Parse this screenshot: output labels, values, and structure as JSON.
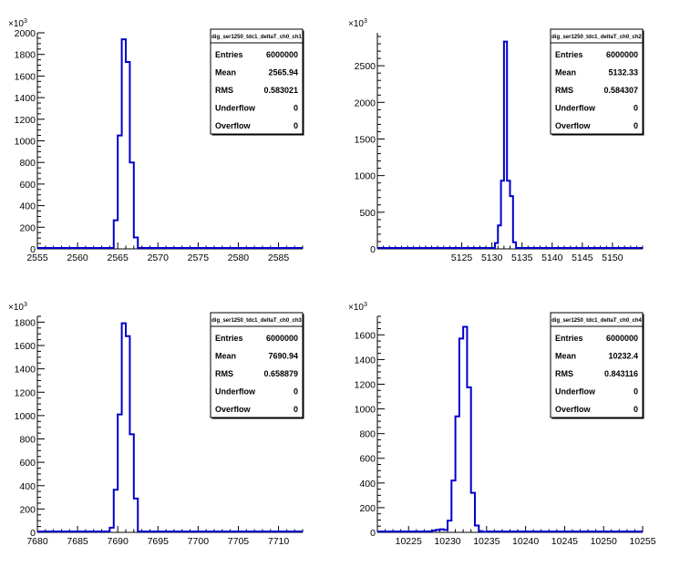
{
  "chart_data": [
    {
      "type": "histogram",
      "title": "dig_ser1250_tdc1_deltaT_ch0_ch1",
      "xlim": [
        2555,
        2588
      ],
      "ylim": [
        0,
        2000
      ],
      "y_exponent": "3",
      "y_multiplier_label": "×10",
      "x_ticks": [
        2555,
        2560,
        2565,
        2570,
        2575,
        2580,
        2585
      ],
      "y_ticks": [
        0,
        200,
        400,
        600,
        800,
        1000,
        1200,
        1400,
        1600,
        1800,
        2000
      ],
      "bins": {
        "edges": [
          2564.5,
          2565,
          2565.5,
          2566,
          2566.5,
          2567,
          2567.5
        ],
        "counts": [
          265,
          1050,
          1940,
          1730,
          800,
          105
        ]
      },
      "stats": [
        {
          "label": "Entries",
          "value": "6000000"
        },
        {
          "label": "Mean",
          "value": "2565.94"
        },
        {
          "label": "RMS",
          "value": "0.583021"
        },
        {
          "label": "Underflow",
          "value": "0"
        },
        {
          "label": "Overflow",
          "value": "0"
        }
      ]
    },
    {
      "type": "histogram",
      "title": "dig_ser1250_tdc1_deltaT_ch0_ch2",
      "xlim": [
        5111,
        5155
      ],
      "ylim": [
        0,
        2950
      ],
      "y_exponent": "3",
      "y_multiplier_label": "×10",
      "x_ticks": [
        5125,
        5130,
        5135,
        5140,
        5145,
        5150
      ],
      "y_ticks": [
        0,
        500,
        1000,
        1500,
        2000,
        2500
      ],
      "bins": {
        "edges": [
          5130.5,
          5131,
          5131.5,
          5132,
          5132.5,
          5133,
          5133.5,
          5134
        ],
        "counts": [
          80,
          320,
          930,
          2830,
          930,
          720,
          90
        ]
      },
      "stats": [
        {
          "label": "Entries",
          "value": "6000000"
        },
        {
          "label": "Mean",
          "value": "5132.33"
        },
        {
          "label": "RMS",
          "value": "0.584307"
        },
        {
          "label": "Underflow",
          "value": "0"
        },
        {
          "label": "Overflow",
          "value": "0"
        }
      ]
    },
    {
      "type": "histogram",
      "title": "dig_ser1250_tdc1_deltaT_ch0_ch3",
      "xlim": [
        7680,
        7713
      ],
      "ylim": [
        0,
        1850
      ],
      "y_exponent": "3",
      "y_multiplier_label": "×10",
      "x_ticks": [
        7680,
        7685,
        7690,
        7695,
        7700,
        7705,
        7710
      ],
      "y_ticks": [
        0,
        200,
        400,
        600,
        800,
        1000,
        1200,
        1400,
        1600,
        1800
      ],
      "bins": {
        "edges": [
          7689,
          7689.5,
          7690,
          7690.5,
          7691,
          7691.5,
          7692,
          7692.5
        ],
        "counts": [
          40,
          365,
          1010,
          1790,
          1680,
          840,
          290
        ]
      },
      "stats": [
        {
          "label": "Entries",
          "value": "6000000"
        },
        {
          "label": "Mean",
          "value": "7690.94"
        },
        {
          "label": "RMS",
          "value": "0.658879"
        },
        {
          "label": "Underflow",
          "value": "0"
        },
        {
          "label": "Overflow",
          "value": "0"
        }
      ]
    },
    {
      "type": "histogram",
      "title": "dig_ser1250_tdc1_deltaT_ch0_ch4",
      "xlim": [
        10221,
        10255
      ],
      "ylim": [
        0,
        1750
      ],
      "y_exponent": "3",
      "y_multiplier_label": "×10",
      "x_ticks": [
        10225,
        10230,
        10235,
        10240,
        10245,
        10250,
        10255
      ],
      "y_ticks": [
        0,
        200,
        400,
        600,
        800,
        1000,
        1200,
        1400,
        1600
      ],
      "bins": {
        "edges": [
          10227.5,
          10228,
          10228.5,
          10229,
          10229.5,
          10230,
          10230.5,
          10231,
          10231.5,
          10232,
          10232.5,
          10233,
          10233.5,
          10234,
          10234.5,
          10235
        ],
        "counts": [
          8,
          15,
          20,
          25,
          20,
          95,
          420,
          940,
          1570,
          1665,
          1175,
          320,
          55,
          10,
          4
        ]
      },
      "stats": [
        {
          "label": "Entries",
          "value": "6000000"
        },
        {
          "label": "Mean",
          "value": "10232.4"
        },
        {
          "label": "RMS",
          "value": "0.843116"
        },
        {
          "label": "Underflow",
          "value": "0"
        },
        {
          "label": "Overflow",
          "value": "0"
        }
      ]
    }
  ]
}
